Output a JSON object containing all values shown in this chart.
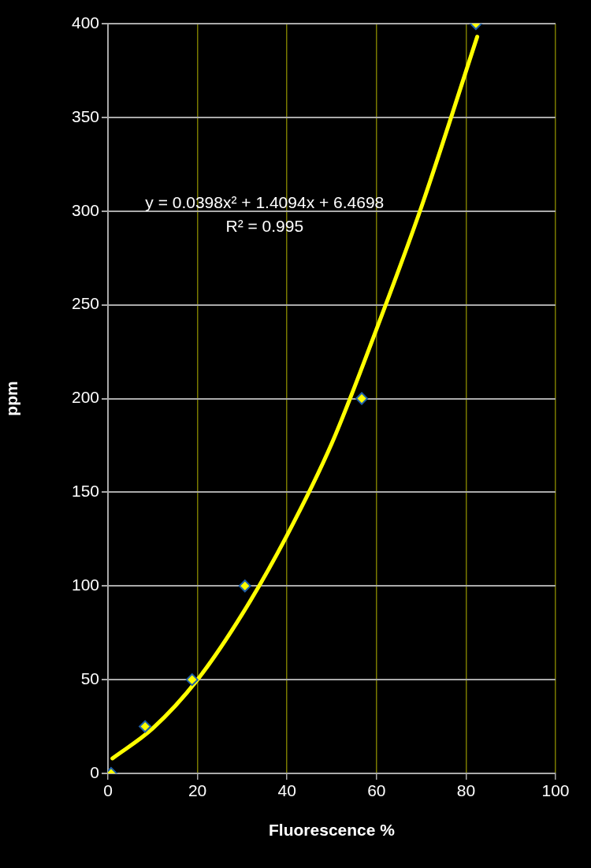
{
  "chart_data": {
    "type": "scatter",
    "xlabel": "Fluorescence %",
    "ylabel": "ppm",
    "xlim": [
      0,
      100
    ],
    "ylim": [
      0,
      400
    ],
    "xticks": [
      0,
      20,
      40,
      60,
      80,
      100
    ],
    "yticks": [
      0,
      50,
      100,
      150,
      200,
      250,
      300,
      350,
      400
    ],
    "grid": true,
    "legend": false,
    "marker": "diamond",
    "annotations": [
      "y = 0.0398x² + 1.4094x + 6.4698",
      "R² = 0.995"
    ],
    "series": [
      {
        "type": "scatter",
        "color": "#ffff00",
        "x": [
          0.7,
          8.3,
          18.8,
          30.6,
          56.7,
          82.2
        ],
        "values": [
          0,
          25,
          50,
          100,
          200,
          400
        ]
      },
      {
        "type": "line",
        "color": "#ffff00",
        "marker": "none",
        "x": [
          1,
          10,
          20,
          30,
          40,
          50,
          60,
          70,
          82.5
        ],
        "values": [
          8,
          24,
          50,
          85,
          127,
          176,
          237,
          302,
          393
        ]
      }
    ]
  }
}
